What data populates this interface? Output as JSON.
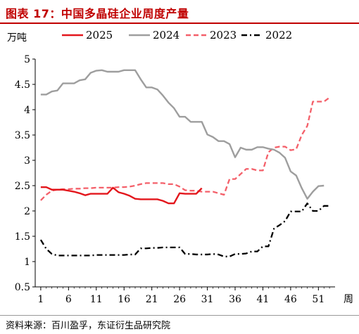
{
  "page": {
    "title": "图表 17：中国多晶硅企业周度产量",
    "source": "资料来源：百川盈孚，东证衍生品研究院"
  },
  "colors": {
    "title_red": "#c00000",
    "series_2025": "#e3161c",
    "series_2024": "#9e9e9e",
    "series_2023": "#f4606a",
    "series_2022": "#000000"
  },
  "chart_data": {
    "type": "line",
    "title": "中国多晶硅企业周度产量",
    "ylabel": "万吨",
    "xlabel": "周",
    "xlim": [
      0,
      54
    ],
    "ylim": [
      0.5,
      5
    ],
    "xticks": [
      1,
      6,
      11,
      16,
      21,
      26,
      31,
      36,
      41,
      46,
      51
    ],
    "yticks": [
      0.5,
      1,
      1.5,
      2,
      2.5,
      3,
      3.5,
      4,
      4.5,
      5
    ],
    "ytick_labels": [
      "0.5",
      "1",
      "1.5",
      "2",
      "2.5",
      "3",
      "3.5",
      "4",
      "4.5",
      "5"
    ],
    "grid": false,
    "legend_position": "top",
    "series": [
      {
        "name": "2025",
        "style": "solid",
        "color": "#e3161c",
        "x": [
          1,
          2,
          3,
          4,
          5,
          6,
          7,
          8,
          9,
          10,
          11,
          12,
          13,
          14,
          15,
          16,
          17,
          18,
          19,
          20,
          21,
          22,
          23,
          24,
          25,
          26,
          27,
          28,
          29,
          30
        ],
        "y": [
          2.47,
          2.47,
          2.42,
          2.42,
          2.42,
          2.4,
          2.38,
          2.35,
          2.31,
          2.34,
          2.34,
          2.34,
          2.34,
          2.46,
          2.37,
          2.34,
          2.3,
          2.24,
          2.23,
          2.23,
          2.23,
          2.23,
          2.2,
          2.15,
          2.15,
          2.35,
          2.34,
          2.34,
          2.34,
          2.45
        ]
      },
      {
        "name": "2024",
        "style": "solid",
        "color": "#9e9e9e",
        "x": [
          1,
          2,
          3,
          4,
          5,
          6,
          7,
          8,
          9,
          10,
          11,
          12,
          13,
          14,
          15,
          16,
          17,
          18,
          19,
          20,
          21,
          22,
          23,
          24,
          25,
          26,
          27,
          28,
          29,
          30,
          31,
          32,
          33,
          34,
          35,
          36,
          37,
          38,
          39,
          40,
          41,
          42,
          43,
          44,
          45,
          46,
          47,
          48,
          49,
          50,
          51,
          52
        ],
        "y": [
          4.3,
          4.3,
          4.36,
          4.38,
          4.52,
          4.52,
          4.52,
          4.58,
          4.6,
          4.73,
          4.77,
          4.78,
          4.75,
          4.75,
          4.75,
          4.78,
          4.78,
          4.78,
          4.6,
          4.44,
          4.44,
          4.4,
          4.28,
          4.14,
          4.03,
          3.86,
          3.86,
          3.76,
          3.76,
          3.76,
          3.51,
          3.46,
          3.38,
          3.38,
          3.32,
          3.06,
          3.25,
          3.21,
          3.21,
          3.26,
          3.26,
          3.23,
          3.21,
          3.15,
          3.05,
          2.78,
          2.7,
          2.45,
          2.24,
          2.38,
          2.49,
          2.5
        ]
      },
      {
        "name": "2023",
        "style": "dashed",
        "color": "#f4606a",
        "x": [
          1,
          2,
          3,
          4,
          5,
          6,
          7,
          8,
          9,
          10,
          11,
          12,
          13,
          14,
          15,
          16,
          17,
          18,
          19,
          20,
          21,
          22,
          23,
          24,
          25,
          26,
          27,
          28,
          29,
          30,
          31,
          32,
          33,
          34,
          35,
          36,
          37,
          38,
          39,
          40,
          41,
          42,
          43,
          44,
          45,
          46,
          47,
          48,
          49,
          50,
          51,
          52,
          53
        ],
        "y": [
          2.21,
          2.32,
          2.4,
          2.42,
          2.43,
          2.43,
          2.44,
          2.44,
          2.45,
          2.45,
          2.46,
          2.46,
          2.46,
          2.46,
          2.47,
          2.47,
          2.48,
          2.5,
          2.53,
          2.55,
          2.55,
          2.55,
          2.55,
          2.53,
          2.53,
          2.48,
          2.41,
          2.4,
          2.4,
          2.38,
          2.38,
          2.38,
          2.35,
          2.32,
          2.63,
          2.63,
          2.73,
          2.83,
          2.83,
          2.8,
          2.8,
          3.16,
          3.25,
          3.27,
          3.27,
          3.2,
          3.22,
          3.5,
          3.68,
          4.16,
          4.16,
          4.16,
          4.24
        ]
      },
      {
        "name": "2022",
        "style": "dashdot",
        "color": "#000000",
        "x": [
          1,
          2,
          3,
          4,
          5,
          6,
          7,
          8,
          9,
          10,
          11,
          12,
          13,
          14,
          15,
          16,
          17,
          18,
          19,
          20,
          21,
          22,
          23,
          24,
          25,
          26,
          27,
          28,
          29,
          30,
          31,
          32,
          33,
          34,
          35,
          36,
          37,
          38,
          39,
          40,
          41,
          42,
          43,
          44,
          45,
          46,
          47,
          48,
          49,
          50,
          51,
          52,
          53
        ],
        "y": [
          1.43,
          1.25,
          1.15,
          1.12,
          1.12,
          1.12,
          1.12,
          1.12,
          1.12,
          1.12,
          1.13,
          1.13,
          1.13,
          1.13,
          1.13,
          1.13,
          1.14,
          1.14,
          1.26,
          1.26,
          1.27,
          1.27,
          1.28,
          1.28,
          1.28,
          1.28,
          1.15,
          1.15,
          1.14,
          1.14,
          1.14,
          1.15,
          1.14,
          1.1,
          1.1,
          1.15,
          1.15,
          1.16,
          1.2,
          1.2,
          1.3,
          1.3,
          1.65,
          1.72,
          1.8,
          1.99,
          1.99,
          1.99,
          2.15,
          2.0,
          2.0,
          2.1,
          2.1
        ]
      }
    ]
  }
}
